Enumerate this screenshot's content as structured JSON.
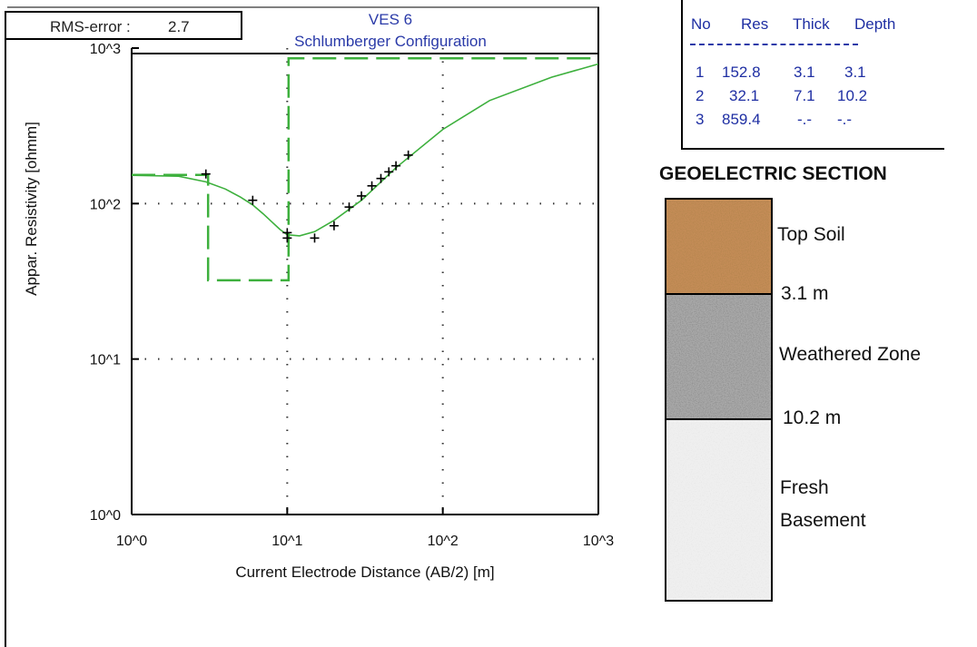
{
  "rms": {
    "label": "RMS-error :",
    "value": "2.7"
  },
  "header": {
    "title": "VES 6",
    "subtitle": "Schlumberger Configuration"
  },
  "table": {
    "headers": [
      "No",
      "Res",
      "Thick",
      "Depth"
    ],
    "divider": "---------------------------",
    "rows": [
      [
        "1",
        "152.8",
        "3.1",
        "3.1"
      ],
      [
        "2",
        "32.1",
        "7.1",
        "10.2"
      ],
      [
        "3",
        "859.4",
        "-.-",
        "-.-"
      ]
    ]
  },
  "section": {
    "title": "GEOELECTRIC SECTION",
    "layers": [
      {
        "name": "Top Soil",
        "color": "#c48c57"
      },
      {
        "name": "Weathered Zone",
        "color": "#a9a9a9"
      },
      {
        "name": "Fresh\nBasement",
        "color": "#efefef"
      }
    ],
    "depths": [
      "3.1 m",
      "10.2 m"
    ]
  },
  "chart_data": {
    "type": "line",
    "xlabel": "Current Electrode Distance (AB/2) [m]",
    "ylabel": "Appar. Resistivity [ohmm]",
    "x_scale": "log",
    "y_scale": "log",
    "xlim": [
      1,
      1000
    ],
    "ylim": [
      1,
      1000
    ],
    "x_ticks": [
      "10^0",
      "10^1",
      "10^2",
      "10^3"
    ],
    "y_ticks": [
      "10^0",
      "10^1",
      "10^2",
      "10^3"
    ],
    "grid": "dotted",
    "colors": {
      "model": "#3db03d",
      "observed": "#000000"
    },
    "observed": {
      "x": [
        3,
        6,
        10,
        10,
        15,
        20,
        25,
        30,
        35,
        40,
        45,
        50,
        60
      ],
      "y": [
        155,
        105,
        65,
        60,
        60,
        72,
        95,
        112,
        130,
        145,
        160,
        175,
        205
      ]
    },
    "calculated": {
      "x": [
        1,
        2,
        3,
        4,
        5,
        6,
        7,
        8,
        9,
        10,
        12,
        15,
        20,
        30,
        50,
        100,
        200,
        500,
        1000
      ],
      "y": [
        152,
        150,
        138,
        124,
        110,
        98,
        86,
        76,
        68,
        63,
        62,
        66,
        78,
        105,
        170,
        300,
        460,
        650,
        790
      ]
    },
    "model": {
      "resistivity": [
        152.8,
        32.1,
        859.4
      ],
      "boundaries": [
        3.1,
        10.2
      ]
    }
  }
}
